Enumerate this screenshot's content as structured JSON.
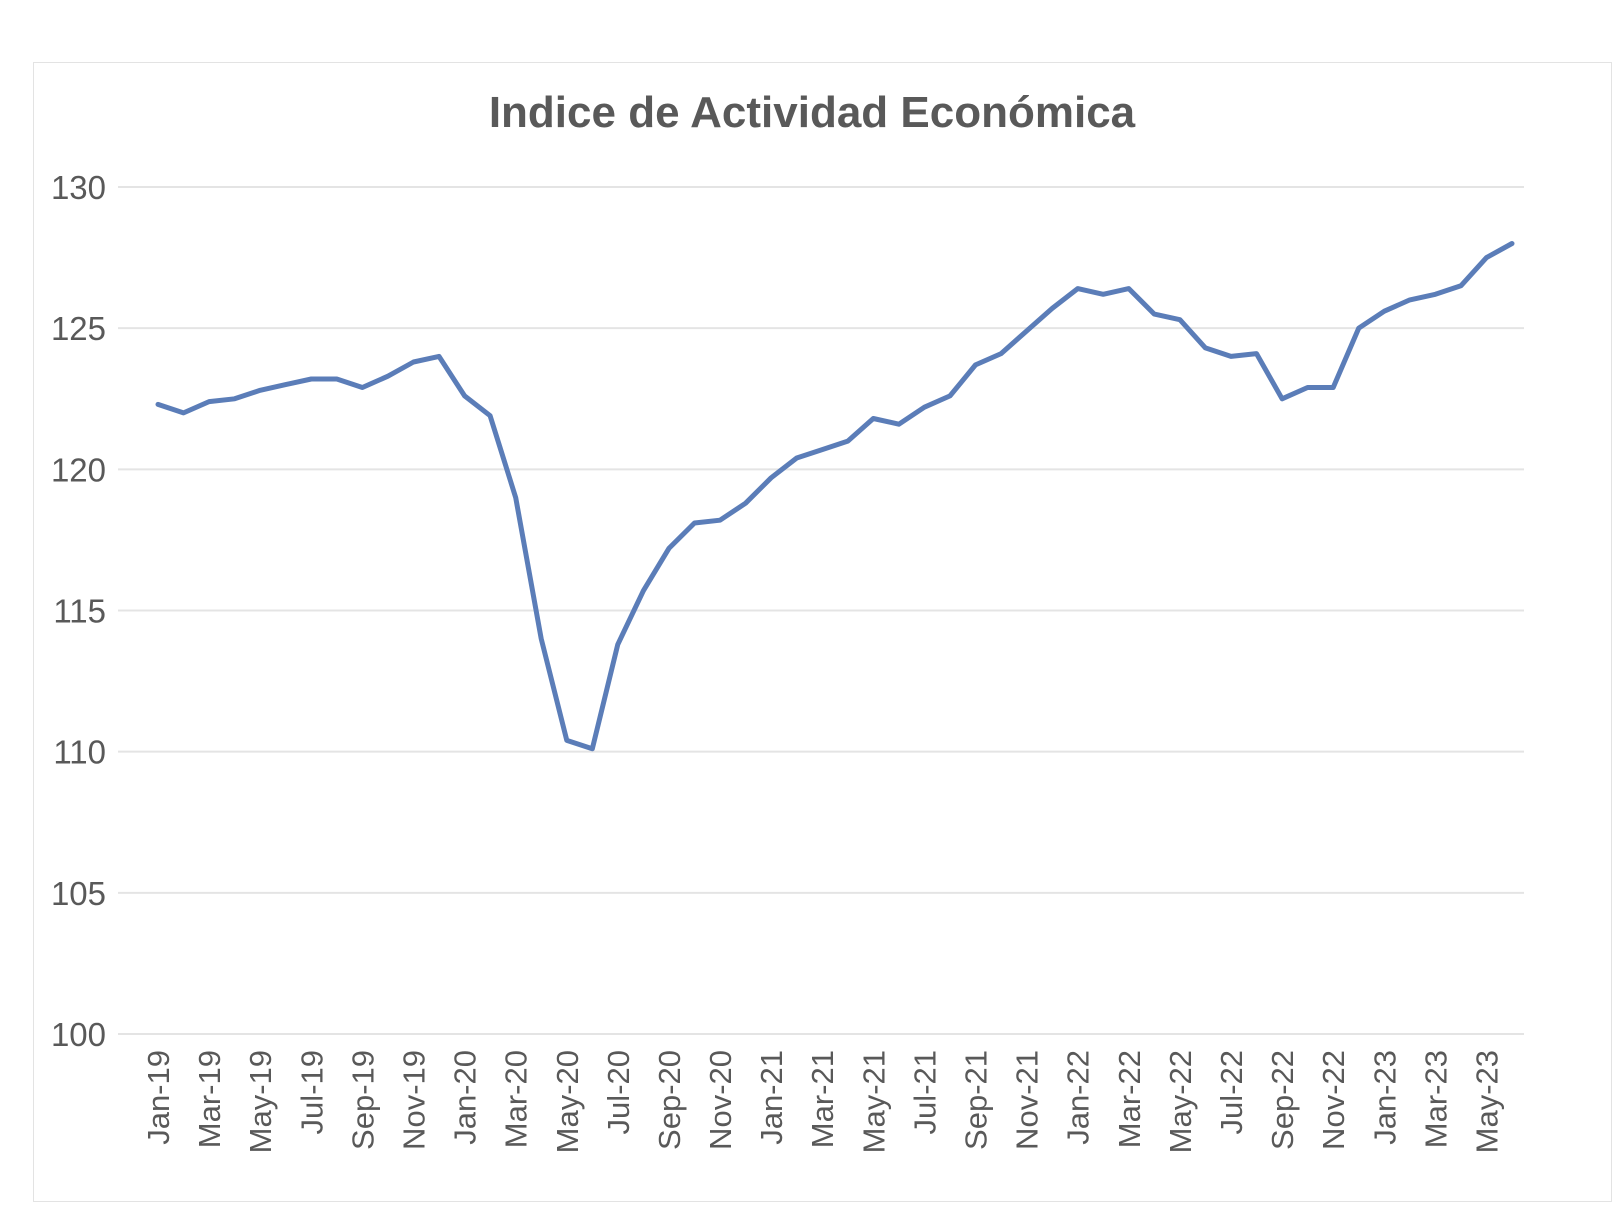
{
  "chart_data": {
    "type": "line",
    "title": "Indice de Actividad Económica",
    "xlabel": "",
    "ylabel": "",
    "ylim": [
      100,
      130
    ],
    "yticks": [
      "100",
      "105",
      "110",
      "115",
      "120",
      "125",
      "130"
    ],
    "grid": true,
    "legend": "none",
    "x_tick_labels": [
      "Jan-19",
      "Mar-19",
      "May-19",
      "Jul-19",
      "Sep-19",
      "Nov-19",
      "Jan-20",
      "Mar-20",
      "May-20",
      "Jul-20",
      "Sep-20",
      "Nov-20",
      "Jan-21",
      "Mar-21",
      "May-21",
      "Jul-21",
      "Sep-21",
      "Nov-21",
      "Jan-22",
      "Mar-22",
      "May-22",
      "Jul-22",
      "Sep-22",
      "Nov-22",
      "Jan-23",
      "Mar-23",
      "May-23"
    ],
    "categories": [
      "Jan-19",
      "Feb-19",
      "Mar-19",
      "Apr-19",
      "May-19",
      "Jun-19",
      "Jul-19",
      "Aug-19",
      "Sep-19",
      "Oct-19",
      "Nov-19",
      "Dec-19",
      "Jan-20",
      "Feb-20",
      "Mar-20",
      "Apr-20",
      "May-20",
      "Jun-20",
      "Jul-20",
      "Aug-20",
      "Sep-20",
      "Oct-20",
      "Nov-20",
      "Dec-20",
      "Jan-21",
      "Feb-21",
      "Mar-21",
      "Apr-21",
      "May-21",
      "Jun-21",
      "Jul-21",
      "Aug-21",
      "Sep-21",
      "Oct-21",
      "Nov-21",
      "Dec-21",
      "Jan-22",
      "Feb-22",
      "Mar-22",
      "Apr-22",
      "May-22",
      "Jun-22",
      "Jul-22",
      "Aug-22",
      "Sep-22",
      "Oct-22",
      "Nov-22",
      "Dec-22",
      "Jan-23",
      "Feb-23",
      "Mar-23",
      "Apr-23",
      "May-23",
      "Jun-23"
    ],
    "series": [
      {
        "color": "#5b7db8",
        "values": [
          122.3,
          122.0,
          122.4,
          122.5,
          122.8,
          123.0,
          123.2,
          123.2,
          122.9,
          123.3,
          123.8,
          124.0,
          122.6,
          121.9,
          119.0,
          114.0,
          110.4,
          110.1,
          113.8,
          115.7,
          117.2,
          118.1,
          118.2,
          118.8,
          119.7,
          120.4,
          120.7,
          121.0,
          121.8,
          121.6,
          122.2,
          122.6,
          123.7,
          124.1,
          124.9,
          125.7,
          126.4,
          126.2,
          126.4,
          125.5,
          125.3,
          124.3,
          124.0,
          124.1,
          122.5,
          122.9,
          122.9,
          125.0,
          125.6,
          126.0,
          126.2,
          126.5,
          127.5,
          128.0
        ]
      }
    ]
  }
}
